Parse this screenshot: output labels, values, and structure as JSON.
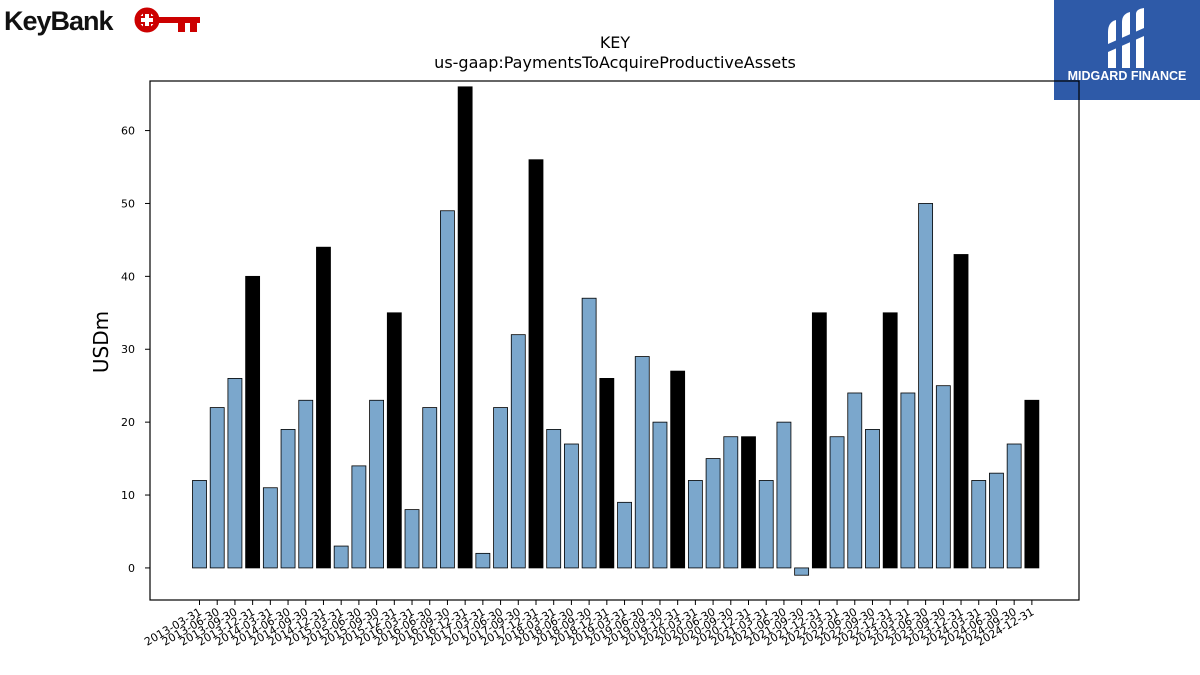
{
  "header": {
    "left_logo_text": "KeyBank",
    "right_logo_text": "MIDGARD FINANCE"
  },
  "colors": {
    "keybank_red": "#cc0000",
    "midgard_blue": "#2e5aa8",
    "bar_normal": "#7ba7cc",
    "bar_highlight": "#000000"
  },
  "chart_data": {
    "type": "bar",
    "title": "KEY",
    "subtitle": "us-gaap:PaymentsToAcquireProductiveAssets",
    "xlabel": "",
    "ylabel": "USDm",
    "ylim": [
      -4.4,
      66.8
    ],
    "yticks": [
      0,
      10,
      20,
      30,
      40,
      50,
      60
    ],
    "grid": false,
    "highlight_rule": "quarter ending 12-31 drawn in black",
    "categories": [
      "2013-03-31",
      "2013-06-30",
      "2013-09-30",
      "2013-12-31",
      "2014-03-31",
      "2014-06-30",
      "2014-09-30",
      "2014-12-31",
      "2015-03-31",
      "2015-06-30",
      "2015-09-30",
      "2015-12-31",
      "2016-03-31",
      "2016-06-30",
      "2016-09-30",
      "2016-12-31",
      "2017-03-31",
      "2017-06-30",
      "2017-09-30",
      "2017-12-31",
      "2018-03-31",
      "2018-06-30",
      "2018-09-30",
      "2018-12-31",
      "2019-03-31",
      "2019-06-30",
      "2019-09-30",
      "2019-12-31",
      "2020-03-31",
      "2020-06-30",
      "2020-09-30",
      "2020-12-31",
      "2021-03-31",
      "2021-06-30",
      "2021-09-30",
      "2021-12-31",
      "2022-03-31",
      "2022-06-30",
      "2022-09-30",
      "2022-12-31",
      "2023-03-31",
      "2023-06-30",
      "2023-09-30",
      "2023-12-31",
      "2024-03-31",
      "2024-06-30",
      "2024-09-30",
      "2024-12-31"
    ],
    "values": [
      12,
      22,
      26,
      40,
      11,
      19,
      23,
      44,
      3,
      14,
      23,
      35,
      8,
      22,
      49,
      66,
      2,
      22,
      32,
      56,
      19,
      17,
      37,
      26,
      9,
      29,
      20,
      27,
      12,
      15,
      18,
      18,
      12,
      20,
      -1,
      35,
      18,
      24,
      19,
      35,
      24,
      50,
      25,
      43,
      12,
      13,
      17,
      23
    ]
  }
}
